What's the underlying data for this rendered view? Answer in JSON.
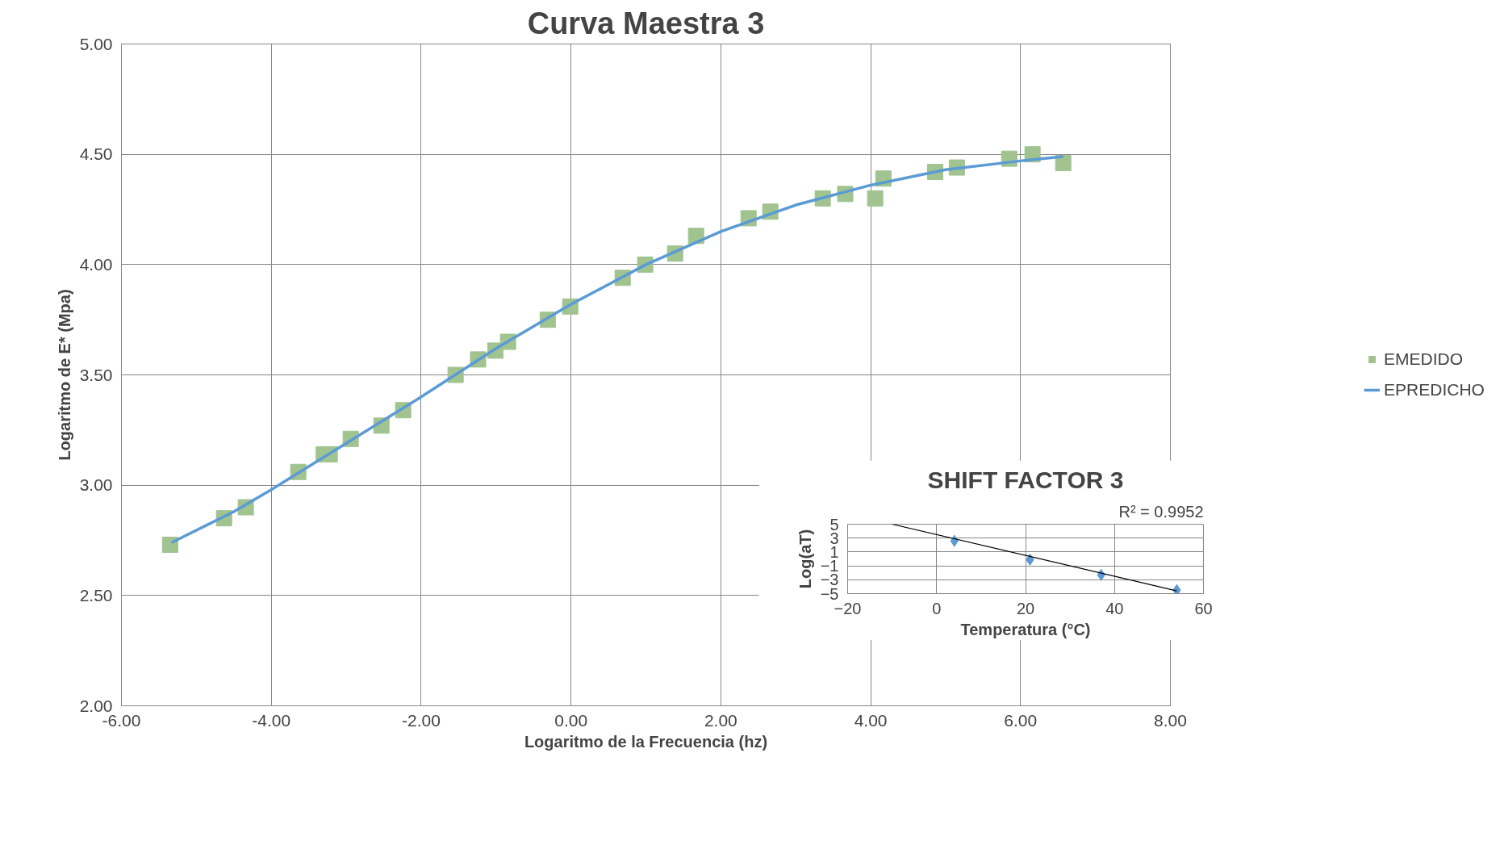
{
  "chart_data": [
    {
      "type": "scatter",
      "title": "Curva Maestra 3",
      "xlabel": "Logaritmo de la Frecuencia (hz)",
      "ylabel": "Logaritmo de E* (Mpa)",
      "xlim": [
        -6,
        8
      ],
      "xticks": [
        {
          "value": -6,
          "label": "-6.00"
        },
        {
          "value": -4,
          "label": "-4.00"
        },
        {
          "value": -2,
          "label": "-2.00"
        },
        {
          "value": 0,
          "label": "0.00"
        },
        {
          "value": 2,
          "label": "2.00"
        },
        {
          "value": 4,
          "label": "4.00"
        },
        {
          "value": 6,
          "label": "6.00"
        },
        {
          "value": 8,
          "label": "8.00"
        }
      ],
      "ylim": [
        2,
        5
      ],
      "yticks": [
        {
          "value": 2,
          "label": "2.00"
        },
        {
          "value": 2.5,
          "label": "2.50"
        },
        {
          "value": 3,
          "label": "3.00"
        },
        {
          "value": 3.5,
          "label": "3.50"
        },
        {
          "value": 4,
          "label": "4.00"
        },
        {
          "value": 4.5,
          "label": "4.50"
        },
        {
          "value": 5,
          "label": "5.00"
        }
      ],
      "grid": true,
      "legend": "right",
      "series": [
        {
          "name": "EMEDIDO",
          "marker": "square",
          "color": "#a0c390",
          "x": [
            -5.35,
            -4.63,
            -4.34,
            -3.64,
            -3.3,
            -3.22,
            -2.94,
            -2.53,
            -2.24,
            -1.54,
            -1.24,
            -1.01,
            -0.84,
            -0.31,
            -0.01,
            0.69,
            0.99,
            1.39,
            1.67,
            2.37,
            2.66,
            3.36,
            3.66,
            4.06,
            4.17,
            4.86,
            5.15,
            5.85,
            6.16,
            6.57
          ],
          "values": [
            2.73,
            2.85,
            2.9,
            3.06,
            3.14,
            3.14,
            3.21,
            3.27,
            3.34,
            3.5,
            3.57,
            3.61,
            3.65,
            3.75,
            3.81,
            3.94,
            4.0,
            4.05,
            4.13,
            4.21,
            4.24,
            4.3,
            4.32,
            4.3,
            4.39,
            4.42,
            4.44,
            4.48,
            4.5,
            4.46
          ]
        },
        {
          "name": "EPREDICHO",
          "type": "line",
          "marker": "none",
          "color": "#5b9bd5",
          "x": [
            -5.33,
            -4.5,
            -4,
            -3,
            -2,
            -1,
            0,
            1,
            2,
            3,
            4,
            5,
            6,
            6.57
          ],
          "values": [
            2.74,
            2.88,
            2.98,
            3.19,
            3.4,
            3.62,
            3.82,
            4.0,
            4.15,
            4.27,
            4.36,
            4.43,
            4.47,
            4.49
          ]
        }
      ]
    },
    {
      "type": "scatter",
      "title": "SHIFT FACTOR 3",
      "xlabel": "Temperatura (°C)",
      "ylabel": "Log(aT)",
      "xlim": [
        -20,
        60
      ],
      "xticks": [
        -20,
        0,
        20,
        40,
        60
      ],
      "ylim": [
        -5,
        5
      ],
      "yticks": [
        -5,
        -3,
        -1,
        1,
        3,
        5
      ],
      "grid": true,
      "annotations": [
        "R² = 0.9952"
      ],
      "series": [
        {
          "marker": "diamond",
          "color": "#5b9bd5",
          "x": [
            4,
            21,
            37,
            54
          ],
          "values": [
            2.6,
            -0.1,
            -2.3,
            -4.5
          ]
        },
        {
          "type": "line",
          "marker": "none",
          "color": "#000000",
          "x": [
            -10,
            54
          ],
          "values": [
            5,
            -4.6
          ]
        }
      ]
    }
  ]
}
